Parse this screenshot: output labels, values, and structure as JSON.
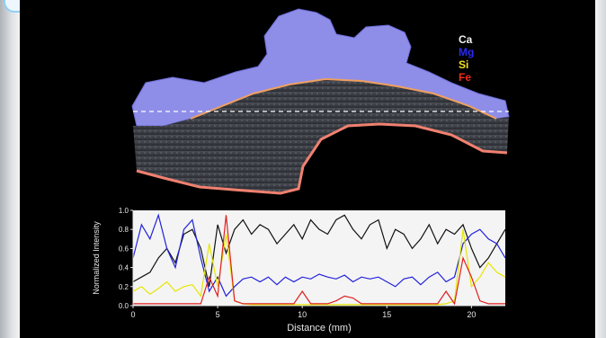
{
  "legend": [
    {
      "label": "Ca",
      "color": "#f2f2f2"
    },
    {
      "label": "Mg",
      "color": "#2a2af0"
    },
    {
      "label": "Si",
      "color": "#f2e21a"
    },
    {
      "label": "Fe",
      "color": "#f02a1a"
    }
  ],
  "chart_data": {
    "type": "line",
    "xlabel": "Distance (mm)",
    "ylabel": "Normalized Intensity",
    "xlim": [
      0,
      22
    ],
    "ylim": [
      0,
      1.0
    ],
    "xticks": [
      "0",
      "5",
      "10",
      "15",
      "20"
    ],
    "xtick_values": [
      0,
      5,
      10,
      15,
      20
    ],
    "yticks": [
      "0.0",
      "0.2",
      "0.4",
      "0.6",
      "0.8",
      "1.0"
    ],
    "ytick_values": [
      0,
      0.2,
      0.4,
      0.6,
      0.8,
      1.0
    ],
    "grid": false,
    "series": [
      {
        "name": "Ca",
        "color": "#111111",
        "x": [
          0,
          0.5,
          1,
          1.5,
          2,
          2.5,
          3,
          3.5,
          4,
          4.5,
          5,
          5.5,
          6,
          6.5,
          7,
          7.5,
          8,
          8.5,
          9,
          9.5,
          10,
          10.5,
          11,
          11.5,
          12,
          12.5,
          13,
          13.5,
          14,
          14.5,
          15,
          15.5,
          16,
          16.5,
          17,
          17.5,
          18,
          18.5,
          19,
          19.5,
          20,
          20.5,
          21,
          21.5,
          22
        ],
        "y": [
          0.25,
          0.3,
          0.35,
          0.5,
          0.6,
          0.45,
          0.75,
          0.8,
          0.6,
          0.2,
          0.85,
          0.55,
          0.8,
          0.9,
          0.75,
          0.85,
          0.8,
          0.65,
          0.75,
          0.85,
          0.7,
          0.9,
          0.8,
          0.75,
          0.9,
          0.95,
          0.8,
          0.7,
          0.85,
          0.9,
          0.6,
          0.8,
          0.75,
          0.6,
          0.7,
          0.85,
          0.65,
          0.8,
          0.75,
          0.85,
          0.6,
          0.4,
          0.5,
          0.65,
          0.8
        ]
      },
      {
        "name": "Mg",
        "color": "#2222dd",
        "x": [
          0,
          0.5,
          1,
          1.5,
          2,
          2.5,
          3,
          3.5,
          4,
          4.5,
          5,
          5.5,
          6,
          6.5,
          7,
          7.5,
          8,
          8.5,
          9,
          9.5,
          10,
          10.5,
          11,
          11.5,
          12,
          12.5,
          13,
          13.5,
          14,
          14.5,
          15,
          15.5,
          16,
          16.5,
          17,
          17.5,
          18,
          18.5,
          19,
          19.5,
          20,
          20.5,
          21,
          21.5,
          22
        ],
        "y": [
          0.5,
          0.85,
          0.7,
          0.95,
          0.6,
          0.4,
          0.8,
          0.9,
          0.5,
          0.15,
          0.3,
          0.1,
          0.2,
          0.28,
          0.3,
          0.25,
          0.3,
          0.22,
          0.3,
          0.25,
          0.3,
          0.28,
          0.33,
          0.3,
          0.28,
          0.32,
          0.25,
          0.3,
          0.28,
          0.3,
          0.25,
          0.2,
          0.28,
          0.3,
          0.22,
          0.3,
          0.35,
          0.25,
          0.3,
          0.65,
          0.75,
          0.8,
          0.7,
          0.65,
          0.5
        ]
      },
      {
        "name": "Si",
        "color": "#e6e600",
        "x": [
          0,
          0.5,
          1,
          1.5,
          2,
          2.5,
          3,
          3.5,
          4,
          4.5,
          5,
          5.5,
          6,
          6.5,
          7,
          7.5,
          8,
          8.5,
          9,
          9.5,
          10,
          10.5,
          11,
          11.5,
          12,
          12.5,
          13,
          13.5,
          14,
          14.5,
          15,
          15.5,
          16,
          16.5,
          17,
          17.5,
          18,
          18.5,
          19,
          19.5,
          20,
          20.5,
          21,
          21.5,
          22
        ],
        "y": [
          0.15,
          0.2,
          0.12,
          0.18,
          0.25,
          0.15,
          0.2,
          0.22,
          0.1,
          0.65,
          0.2,
          0.75,
          0.05,
          0.02,
          0.01,
          0.01,
          0.01,
          0.01,
          0.01,
          0.01,
          0.01,
          0.01,
          0.01,
          0.01,
          0.01,
          0.01,
          0.01,
          0.01,
          0.01,
          0.01,
          0.01,
          0.01,
          0.01,
          0.01,
          0.01,
          0.01,
          0.01,
          0.02,
          0.05,
          0.8,
          0.2,
          0.3,
          0.45,
          0.35,
          0.3
        ]
      },
      {
        "name": "Fe",
        "color": "#e02020",
        "x": [
          0,
          0.5,
          1,
          1.5,
          2,
          2.5,
          3,
          3.5,
          4,
          4.5,
          5,
          5.5,
          6,
          6.5,
          7,
          7.5,
          8,
          8.5,
          9,
          9.5,
          10,
          10.5,
          11,
          11.5,
          12,
          12.5,
          13,
          13.5,
          14,
          14.5,
          15,
          15.5,
          16,
          16.5,
          17,
          17.5,
          18,
          18.5,
          19,
          19.5,
          20,
          20.5,
          21,
          21.5,
          22
        ],
        "y": [
          0.02,
          0.02,
          0.02,
          0.02,
          0.02,
          0.02,
          0.02,
          0.02,
          0.02,
          0.3,
          0.1,
          0.95,
          0.05,
          0.02,
          0.02,
          0.02,
          0.02,
          0.02,
          0.02,
          0.02,
          0.15,
          0.02,
          0.02,
          0.02,
          0.05,
          0.1,
          0.08,
          0.02,
          0.02,
          0.02,
          0.02,
          0.02,
          0.02,
          0.02,
          0.02,
          0.02,
          0.02,
          0.15,
          0.02,
          0.5,
          0.3,
          0.05,
          0.02,
          0.02,
          0.02
        ]
      }
    ]
  }
}
